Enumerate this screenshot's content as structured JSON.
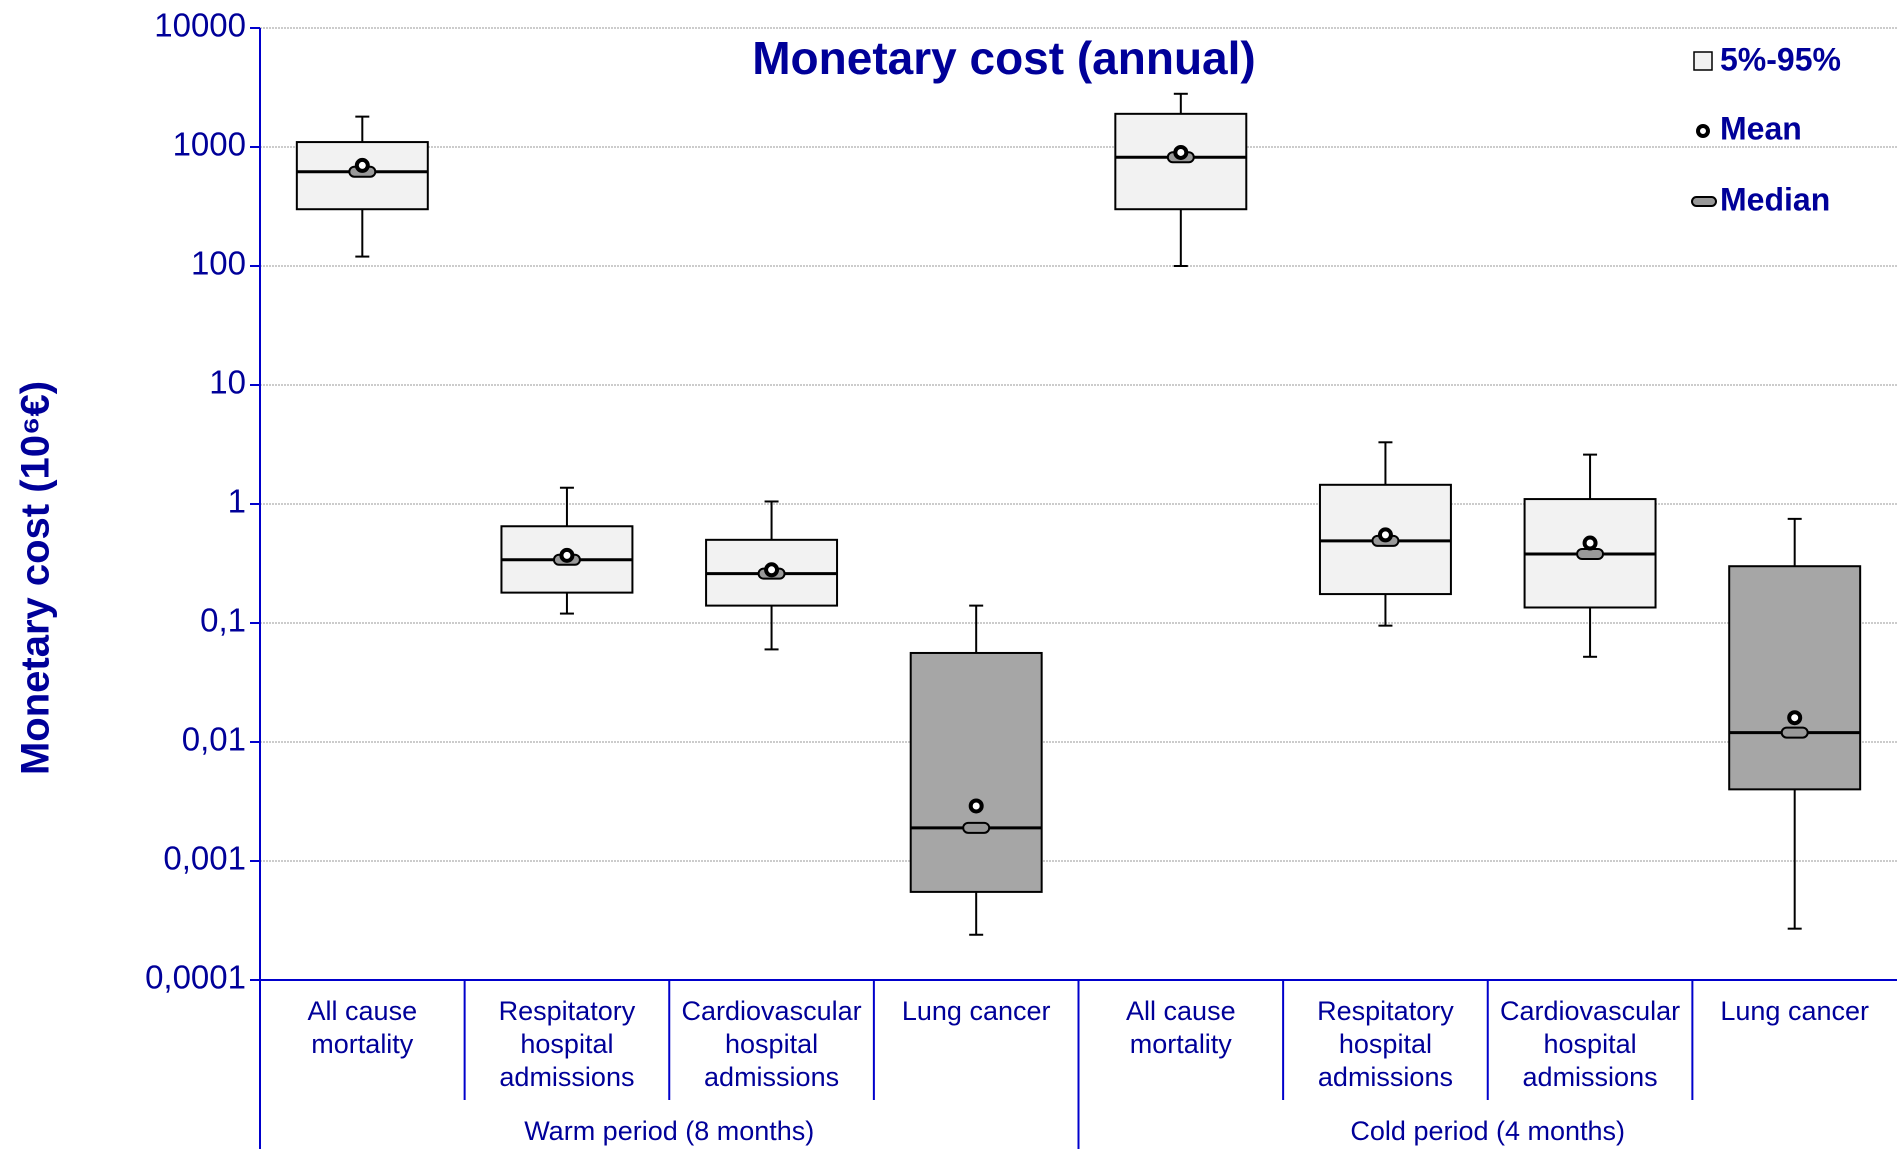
{
  "chart_data": {
    "type": "box",
    "title": "Monetary cost (annual)",
    "y_label": "Monetary cost (10⁶€)",
    "log_scale": true,
    "grid": true,
    "ylim": [
      0.0001,
      10000
    ],
    "yticks": [
      {
        "value": 0.0001,
        "label": "0,0001"
      },
      {
        "value": 0.001,
        "label": "0,001"
      },
      {
        "value": 0.01,
        "label": "0,01"
      },
      {
        "value": 0.1,
        "label": "0,1"
      },
      1,
      10,
      100,
      1000,
      10000
    ],
    "legend": {
      "position": "upper right",
      "box": "5%-95%",
      "mean": "Mean",
      "median": "Median"
    },
    "groups": [
      {
        "name": "Warm period (8 months)",
        "categories": [
          "All cause mortality",
          "Respitatory hospital admissions",
          "Cardiovascular hospital admissions",
          "Lung cancer"
        ],
        "low": [
          120,
          0.12,
          0.06,
          0.00024
        ],
        "q1": [
          300,
          0.18,
          0.14,
          0.00055
        ],
        "median": [
          620,
          0.34,
          0.26,
          0.0019
        ],
        "q3": [
          1100,
          0.65,
          0.5,
          0.056
        ],
        "high": [
          1800,
          1.37,
          1.05,
          0.14
        ],
        "mean": [
          700,
          0.37,
          0.28,
          0.0029
        ],
        "colors": [
          "#f2f2f2",
          "#f2f2f2",
          "#f2f2f2",
          "#a6a6a6"
        ]
      },
      {
        "name": "Cold period (4 months)",
        "categories": [
          "All cause mortality",
          "Respitatory hospital admissions",
          "Cardiovascular hospital admissions",
          "Lung cancer"
        ],
        "low": [
          100,
          0.095,
          0.052,
          0.00027
        ],
        "q1": [
          300,
          0.175,
          0.135,
          0.004
        ],
        "median": [
          820,
          0.49,
          0.38,
          0.012
        ],
        "q3": [
          1900,
          1.45,
          1.1,
          0.3
        ],
        "high": [
          2800,
          3.3,
          2.6,
          0.75
        ],
        "mean": [
          900,
          0.55,
          0.47,
          0.016
        ],
        "colors": [
          "#f2f2f2",
          "#f2f2f2",
          "#f2f2f2",
          "#a6a6a6"
        ]
      }
    ]
  }
}
